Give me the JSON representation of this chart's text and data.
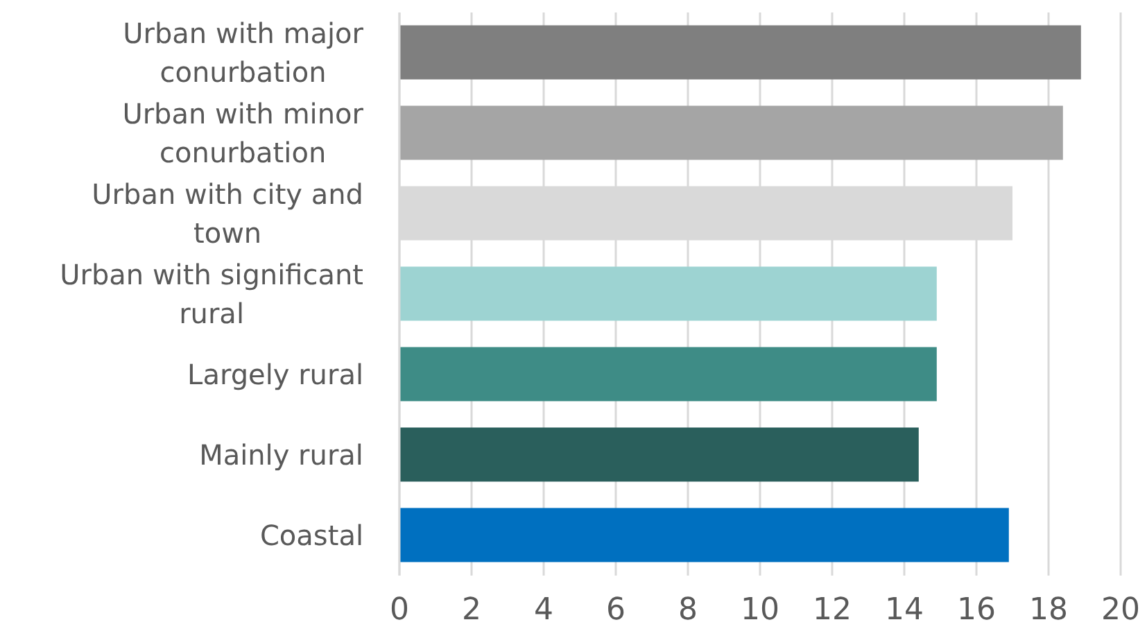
{
  "chart_data": {
    "type": "bar",
    "orientation": "horizontal",
    "categories": [
      "Urban with major conurbation",
      "Urban with minor conurbation",
      "Urban with city and town",
      "Urban with significant rural",
      "Largely rural",
      "Mainly rural",
      "Coastal"
    ],
    "values": [
      18.9,
      18.4,
      17.0,
      14.9,
      14.9,
      14.4,
      16.9
    ],
    "colors": [
      "#7f7f7f",
      "#a5a5a5",
      "#d9d9d9",
      "#9dd3d2",
      "#3e8c86",
      "#2a5f5c",
      "#0070c0"
    ],
    "xlim": [
      0,
      20
    ],
    "xticks": [
      0,
      2,
      4,
      6,
      8,
      10,
      12,
      14,
      16,
      18,
      20
    ],
    "grid": "x"
  }
}
